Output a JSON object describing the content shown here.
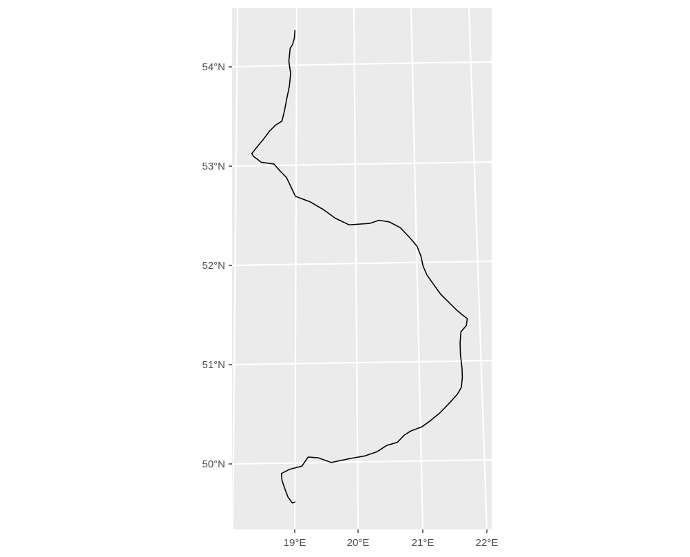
{
  "map": {
    "projection": "conic",
    "background_color": "#ebebeb",
    "graticule_color": "#ffffff",
    "line_color": "#000000",
    "latitude_labels": [
      "54°N",
      "53°N",
      "52°N",
      "51°N",
      "50°N"
    ],
    "longitude_labels": [
      "19°E",
      "20°E",
      "21°E",
      "22°E"
    ],
    "features": [
      {
        "type": "river",
        "coordinates_lonlat": [
          [
            18.97,
            54.36
          ],
          [
            18.96,
            54.28
          ],
          [
            18.93,
            54.22
          ],
          [
            18.89,
            54.18
          ],
          [
            18.87,
            54.05
          ],
          [
            18.9,
            53.93
          ],
          [
            18.88,
            53.8
          ],
          [
            18.84,
            53.68
          ],
          [
            18.8,
            53.55
          ],
          [
            18.76,
            53.45
          ],
          [
            18.65,
            53.41
          ],
          [
            18.55,
            53.35
          ],
          [
            18.45,
            53.27
          ],
          [
            18.34,
            53.19
          ],
          [
            18.26,
            53.13
          ],
          [
            18.29,
            53.1
          ],
          [
            18.42,
            53.04
          ],
          [
            18.63,
            53.02
          ],
          [
            18.73,
            52.95
          ],
          [
            18.84,
            52.88
          ],
          [
            18.99,
            52.69
          ],
          [
            19.24,
            52.63
          ],
          [
            19.46,
            52.55
          ],
          [
            19.66,
            52.46
          ],
          [
            19.89,
            52.39
          ],
          [
            20.23,
            52.4
          ],
          [
            20.39,
            52.43
          ],
          [
            20.56,
            52.41
          ],
          [
            20.74,
            52.35
          ],
          [
            20.89,
            52.25
          ],
          [
            21.01,
            52.16
          ],
          [
            21.07,
            52.06
          ],
          [
            21.1,
            51.96
          ],
          [
            21.16,
            51.87
          ],
          [
            21.28,
            51.76
          ],
          [
            21.38,
            51.67
          ],
          [
            21.52,
            51.58
          ],
          [
            21.63,
            51.51
          ],
          [
            21.7,
            51.47
          ],
          [
            21.8,
            51.42
          ],
          [
            21.78,
            51.35
          ],
          [
            21.69,
            51.29
          ],
          [
            21.67,
            51.18
          ],
          [
            21.67,
            51.06
          ],
          [
            21.69,
            50.92
          ],
          [
            21.69,
            50.83
          ],
          [
            21.67,
            50.73
          ],
          [
            21.6,
            50.66
          ],
          [
            21.48,
            50.58
          ],
          [
            21.32,
            50.48
          ],
          [
            21.16,
            50.4
          ],
          [
            21.02,
            50.34
          ],
          [
            20.84,
            50.3
          ],
          [
            20.74,
            50.26
          ],
          [
            20.63,
            50.19
          ],
          [
            20.46,
            50.16
          ],
          [
            20.31,
            50.1
          ],
          [
            20.12,
            50.06
          ],
          [
            19.92,
            50.04
          ],
          [
            19.74,
            50.02
          ],
          [
            19.58,
            50.0
          ],
          [
            19.37,
            50.05
          ],
          [
            19.21,
            50.06
          ],
          [
            19.11,
            49.97
          ],
          [
            18.91,
            49.94
          ],
          [
            18.78,
            49.9
          ],
          [
            18.79,
            49.83
          ],
          [
            18.84,
            49.74
          ],
          [
            18.89,
            49.66
          ],
          [
            18.96,
            49.6
          ],
          [
            19.0,
            49.61
          ]
        ]
      }
    ]
  }
}
